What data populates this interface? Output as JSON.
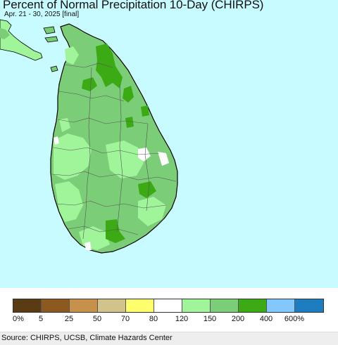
{
  "header": {
    "title": "Percent of Normal Precipitation 10-Day (CHIRPS)",
    "subtitle": "Apr. 21 - 30, 2025 [final]"
  },
  "map": {
    "region": "Sri Lanka",
    "ocean_color": "#c8fbff",
    "land_colors": {
      "above_normal_150_200": "#7ccd78",
      "above_normal_120_150": "#a0f49a",
      "above_normal_200_400": "#3caa14",
      "near_normal_80_120": "#ffffff"
    }
  },
  "legend": {
    "colors": [
      "#5a3c14",
      "#8c5a20",
      "#c8914b",
      "#d2c38c",
      "#ffff6e",
      "#ffffff",
      "#a0f49a",
      "#7ccd78",
      "#3caa14",
      "#82c8ff",
      "#1e7dbe"
    ],
    "tick_labels": [
      "0%",
      "5",
      "25",
      "50",
      "70",
      "80",
      "120",
      "150",
      "200",
      "400",
      "600%"
    ]
  },
  "footer": {
    "source": "Source: CHIRPS, UCSB, Climate Hazards Center"
  }
}
